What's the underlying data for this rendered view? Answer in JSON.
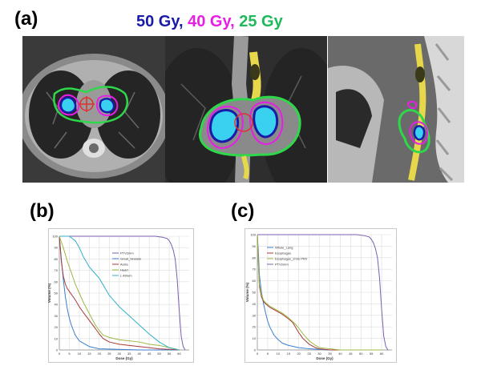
{
  "panel_labels": {
    "a": "(a)",
    "b": "(b)",
    "c": "(c)"
  },
  "dose_legend": [
    {
      "text": "50 Gy",
      "color": "#1a1aa8"
    },
    {
      "text": ", ",
      "color": "#1a1aa8"
    },
    {
      "text": "40 Gy",
      "color": "#e61ee6"
    },
    {
      "text": ", ",
      "color": "#e61ee6"
    },
    {
      "text": "25 Gy",
      "color": "#1fb85a"
    }
  ],
  "chart_data": [
    {
      "type": "line",
      "xlabel": "Dose (Gy)",
      "ylabel": "Volume (%)",
      "xlim": [
        0,
        65
      ],
      "ylim": [
        0,
        100
      ],
      "xticks": [
        0,
        5,
        10,
        15,
        20,
        25,
        30,
        35,
        40,
        45,
        50,
        55,
        60
      ],
      "yticks": [
        0,
        10,
        20,
        30,
        40,
        50,
        60,
        70,
        80,
        90,
        100
      ],
      "grid": true,
      "legend_placement": "top-right",
      "series": [
        {
          "name": "PTV2mm",
          "color": "#7b5fb0",
          "x": [
            0,
            10,
            20,
            30,
            40,
            48,
            52,
            54,
            55,
            56,
            57,
            58,
            59,
            60,
            61,
            62,
            63
          ],
          "y": [
            100,
            100,
            100,
            100,
            100,
            100,
            99,
            98,
            96,
            93,
            88,
            80,
            62,
            35,
            12,
            3,
            0
          ]
        },
        {
          "name": "Great_Vessels",
          "color": "#3a7fd0",
          "x": [
            0,
            1,
            2,
            3,
            4,
            5,
            6,
            8,
            10,
            15,
            20,
            30,
            40,
            60
          ],
          "y": [
            100,
            80,
            62,
            47,
            36,
            28,
            22,
            13,
            8,
            3,
            1,
            0.5,
            0,
            0
          ]
        },
        {
          "name": "Aorta",
          "color": "#a83a3a",
          "x": [
            0,
            1,
            2,
            3,
            4,
            6,
            8,
            10,
            12,
            15,
            18,
            20,
            22,
            25,
            30,
            35,
            40,
            45,
            50,
            55,
            60
          ],
          "y": [
            100,
            78,
            65,
            58,
            54,
            49,
            44,
            38,
            33,
            26,
            19,
            14,
            10,
            7,
            5,
            4,
            3,
            2,
            1,
            0.5,
            0
          ]
        },
        {
          "name": "Heart",
          "color": "#9bb840",
          "x": [
            0,
            2,
            4,
            6,
            8,
            10,
            12,
            15,
            18,
            20,
            22,
            25,
            30,
            35,
            40,
            45,
            50,
            55,
            58,
            60
          ],
          "y": [
            100,
            90,
            78,
            68,
            58,
            50,
            42,
            32,
            22,
            17,
            13,
            11,
            9,
            8,
            7,
            5,
            4,
            2,
            1,
            0
          ]
        },
        {
          "name": "L Atrium",
          "color": "#30b0c8",
          "x": [
            0,
            5,
            8,
            10,
            12,
            15,
            18,
            20,
            25,
            30,
            35,
            40,
            45,
            50,
            55,
            60
          ],
          "y": [
            100,
            100,
            96,
            90,
            82,
            73,
            67,
            63,
            48,
            38,
            30,
            22,
            14,
            7,
            2,
            0
          ]
        }
      ]
    },
    {
      "type": "line",
      "xlabel": "Dose (Gy)",
      "ylabel": "Volume (%)",
      "xlim": [
        0,
        65
      ],
      "ylim": [
        0,
        100
      ],
      "xticks": [
        0,
        5,
        10,
        15,
        20,
        25,
        30,
        35,
        40,
        45,
        50,
        55,
        60
      ],
      "yticks": [
        0,
        10,
        20,
        30,
        40,
        50,
        60,
        70,
        80,
        90,
        100
      ],
      "grid": true,
      "legend_placement": "top-left",
      "series": [
        {
          "name": "Whole_Lung",
          "color": "#3a7fd0",
          "x": [
            0,
            0.5,
            1,
            2,
            3,
            4,
            5,
            6,
            8,
            10,
            12,
            15,
            20,
            25,
            30,
            35,
            60
          ],
          "y": [
            100,
            85,
            65,
            50,
            40,
            32,
            25,
            20,
            13,
            9,
            6,
            4,
            2,
            1,
            0.5,
            0,
            0
          ]
        },
        {
          "name": "Esophagus",
          "color": "#a83a3a",
          "x": [
            0,
            0.5,
            1,
            2,
            3,
            4,
            6,
            8,
            10,
            12,
            15,
            17,
            18,
            20,
            22,
            25,
            28,
            30,
            35,
            60
          ],
          "y": [
            100,
            75,
            55,
            46,
            42,
            40,
            37,
            35,
            33,
            31,
            27,
            24,
            21,
            15,
            10,
            5,
            2,
            1,
            0,
            0
          ]
        },
        {
          "name": "Esophagus_2mm PRV",
          "color": "#9bb840",
          "x": [
            0,
            0.5,
            1,
            2,
            3,
            4,
            6,
            8,
            10,
            12,
            15,
            18,
            20,
            22,
            25,
            28,
            30,
            35,
            40,
            60
          ],
          "y": [
            100,
            76,
            57,
            48,
            43,
            41,
            38,
            36,
            34,
            32,
            28,
            23,
            19,
            14,
            8,
            4,
            2,
            1,
            0,
            0
          ]
        },
        {
          "name": "PTV2mm",
          "color": "#7b5fb0",
          "x": [
            0,
            10,
            20,
            30,
            40,
            48,
            52,
            54,
            55,
            56,
            57,
            58,
            59,
            60,
            61,
            62,
            63
          ],
          "y": [
            100,
            100,
            100,
            100,
            100,
            100,
            99,
            98,
            96,
            93,
            88,
            80,
            62,
            35,
            12,
            3,
            0
          ]
        }
      ]
    }
  ]
}
